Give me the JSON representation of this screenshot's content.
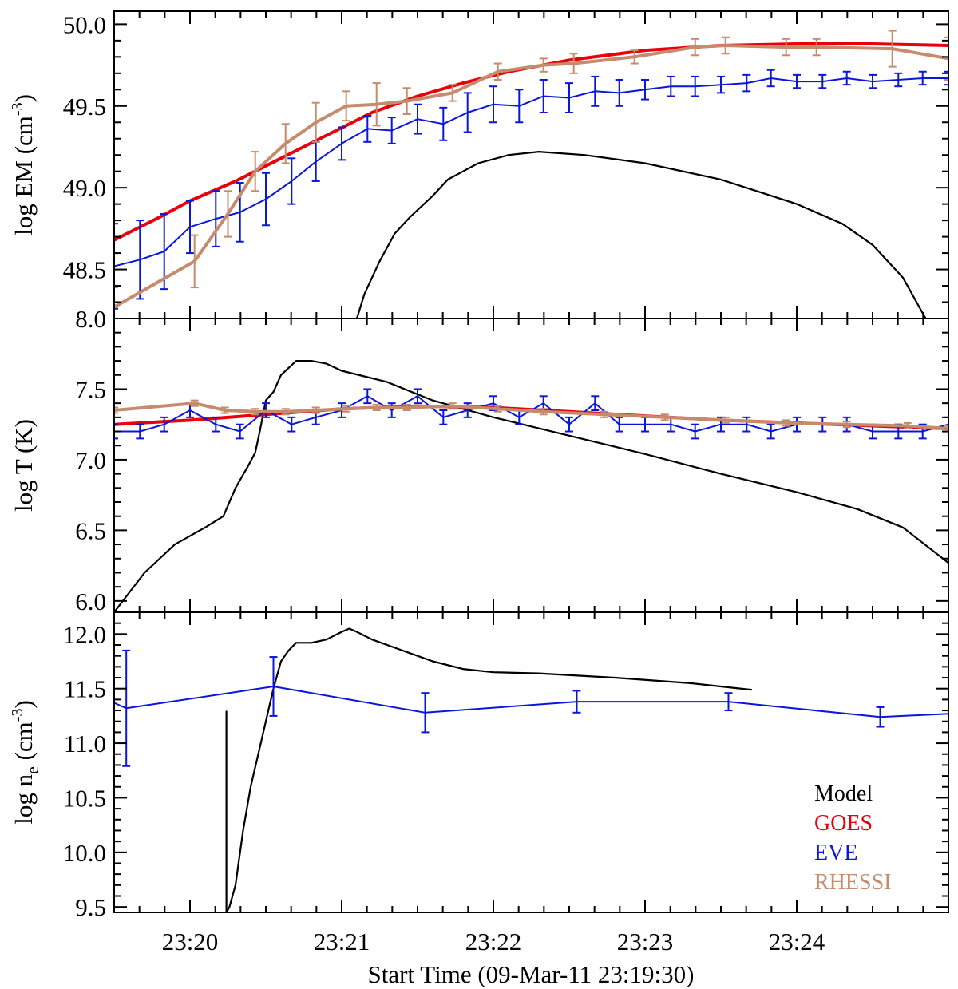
{
  "figure": {
    "xlabel": "Start Time (09-Mar-11 23:19:30)",
    "xticks": [
      "23:20",
      "23:21",
      "23:22",
      "23:23",
      "23:24"
    ],
    "colors": {
      "Model": "#000000",
      "GOES": "#e8000b",
      "EVE": "#0a17d8",
      "RHESSI": "#c68a6c"
    }
  },
  "legend": {
    "placement": "bottom-right of bottom panel",
    "items": [
      "Model",
      "GOES",
      "EVE",
      "RHESSI"
    ]
  },
  "chart_data": [
    {
      "type": "line",
      "panel": "emission-measure",
      "ylabel": "log EM (cm-3)",
      "ylabel_parts": [
        "log EM (cm",
        "-3",
        ")"
      ],
      "xlim": [
        -0.5,
        5.0
      ],
      "ylim": [
        48.2,
        50.08
      ],
      "yticks": [
        48.5,
        49.0,
        49.5,
        50.0
      ],
      "ytick_labels": [
        "48.5",
        "49.0",
        "49.5",
        "50.0"
      ],
      "x_unit": "minutes since 23:20:00",
      "series": [
        {
          "name": "Model",
          "style": "line",
          "x": [
            1.1,
            1.15,
            1.25,
            1.35,
            1.45,
            1.6,
            1.7,
            1.8,
            1.9,
            2.1,
            2.3,
            2.6,
            3.0,
            3.5,
            4.0,
            4.3,
            4.5,
            4.7,
            4.85
          ],
          "y": [
            48.2,
            48.35,
            48.55,
            48.72,
            48.82,
            48.95,
            49.05,
            49.1,
            49.15,
            49.2,
            49.22,
            49.2,
            49.15,
            49.05,
            48.9,
            48.78,
            48.65,
            48.45,
            48.2
          ]
        },
        {
          "name": "GOES",
          "style": "thick-line",
          "x": [
            -0.5,
            -0.2,
            0.0,
            0.3,
            0.6,
            0.9,
            1.2,
            1.5,
            1.8,
            2.1,
            2.5,
            3.0,
            3.5,
            4.0,
            4.5,
            5.0
          ],
          "y": [
            48.68,
            48.82,
            48.92,
            49.04,
            49.18,
            49.32,
            49.46,
            49.56,
            49.64,
            49.71,
            49.78,
            49.84,
            49.87,
            49.88,
            49.88,
            49.87
          ]
        },
        {
          "name": "EVE",
          "style": "line-errorbar",
          "x": [
            -0.5,
            -0.33,
            -0.17,
            0.0,
            0.17,
            0.33,
            0.5,
            0.67,
            0.83,
            1.0,
            1.17,
            1.33,
            1.5,
            1.67,
            1.83,
            2.0,
            2.17,
            2.33,
            2.5,
            2.67,
            2.83,
            3.0,
            3.17,
            3.33,
            3.5,
            3.67,
            3.83,
            4.0,
            4.17,
            4.33,
            4.5,
            4.67,
            4.83,
            5.0
          ],
          "y": [
            48.52,
            48.56,
            48.61,
            48.76,
            48.81,
            48.85,
            48.93,
            49.04,
            49.16,
            49.27,
            49.36,
            49.35,
            49.42,
            49.39,
            49.46,
            49.51,
            49.5,
            49.56,
            49.55,
            49.59,
            49.58,
            49.6,
            49.62,
            49.62,
            49.63,
            49.64,
            49.67,
            49.65,
            49.65,
            49.67,
            49.65,
            49.66,
            49.67,
            49.67
          ],
          "yerr": [
            0.26,
            0.24,
            0.23,
            0.16,
            0.17,
            0.18,
            0.16,
            0.14,
            0.12,
            0.1,
            0.08,
            0.08,
            0.09,
            0.1,
            0.12,
            0.11,
            0.1,
            0.1,
            0.09,
            0.09,
            0.08,
            0.06,
            0.06,
            0.06,
            0.05,
            0.05,
            0.05,
            0.04,
            0.04,
            0.04,
            0.04,
            0.04,
            0.04,
            0.04
          ]
        },
        {
          "name": "RHESSI",
          "style": "thick-line-errorbar",
          "x": [
            -0.5,
            0.03,
            0.25,
            0.43,
            0.63,
            0.83,
            1.03,
            1.23,
            1.43,
            1.73,
            2.03,
            2.33,
            2.53,
            2.93,
            3.33,
            3.53,
            3.93,
            4.13,
            4.63,
            5.0
          ],
          "y": [
            48.27,
            48.55,
            48.84,
            49.1,
            49.27,
            49.4,
            49.5,
            49.51,
            49.53,
            49.58,
            49.71,
            49.75,
            49.76,
            49.8,
            49.86,
            49.87,
            49.86,
            49.86,
            49.85,
            49.79
          ],
          "yerr": [
            0.12,
            0.16,
            0.14,
            0.12,
            0.12,
            0.12,
            0.09,
            0.13,
            0.08,
            0.05,
            0.05,
            0.04,
            0.06,
            0.04,
            0.05,
            0.05,
            0.05,
            0.05,
            0.11,
            0.13
          ]
        }
      ]
    },
    {
      "type": "line",
      "panel": "temperature",
      "ylabel": "log T (K)",
      "ylabel_parts": [
        "log T (K)"
      ],
      "xlim": [
        -0.5,
        5.0
      ],
      "ylim": [
        5.92,
        8.0
      ],
      "yticks": [
        6.0,
        6.5,
        7.0,
        7.5,
        8.0
      ],
      "ytick_labels": [
        "6.0",
        "6.5",
        "7.0",
        "7.5",
        "8.0"
      ],
      "x_unit": "minutes since 23:20:00",
      "series": [
        {
          "name": "Model",
          "style": "line",
          "x": [
            -0.5,
            -0.3,
            -0.1,
            0.1,
            0.22,
            0.3,
            0.38,
            0.43,
            0.46,
            0.5,
            0.55,
            0.6,
            0.7,
            0.8,
            0.9,
            1.0,
            1.3,
            1.6,
            2.0,
            2.5,
            3.0,
            3.5,
            4.0,
            4.4,
            4.7,
            5.0
          ],
          "y": [
            5.92,
            6.2,
            6.4,
            6.52,
            6.6,
            6.8,
            6.95,
            7.05,
            7.2,
            7.42,
            7.48,
            7.6,
            7.7,
            7.7,
            7.68,
            7.63,
            7.55,
            7.42,
            7.3,
            7.17,
            7.04,
            6.9,
            6.77,
            6.65,
            6.52,
            6.27
          ]
        },
        {
          "name": "GOES",
          "style": "thick-line",
          "x": [
            -0.5,
            0.0,
            0.5,
            1.0,
            1.5,
            2.0,
            2.5,
            3.0,
            3.5,
            4.0,
            4.5,
            5.0
          ],
          "y": [
            7.25,
            7.28,
            7.32,
            7.36,
            7.38,
            7.37,
            7.34,
            7.31,
            7.28,
            7.26,
            7.24,
            7.22
          ]
        },
        {
          "name": "EVE",
          "style": "line-errorbar",
          "x": [
            -0.5,
            -0.33,
            -0.17,
            0.0,
            0.17,
            0.33,
            0.5,
            0.67,
            0.83,
            1.0,
            1.17,
            1.33,
            1.5,
            1.67,
            1.83,
            2.0,
            2.17,
            2.33,
            2.5,
            2.67,
            2.83,
            3.0,
            3.17,
            3.33,
            3.5,
            3.67,
            3.83,
            4.0,
            4.17,
            4.33,
            4.5,
            4.67,
            4.83,
            5.0
          ],
          "y": [
            7.2,
            7.2,
            7.25,
            7.35,
            7.25,
            7.2,
            7.35,
            7.25,
            7.3,
            7.35,
            7.45,
            7.35,
            7.45,
            7.3,
            7.35,
            7.4,
            7.3,
            7.4,
            7.25,
            7.4,
            7.25,
            7.25,
            7.25,
            7.2,
            7.25,
            7.25,
            7.2,
            7.25,
            7.25,
            7.25,
            7.2,
            7.2,
            7.2,
            7.25
          ],
          "yerr": [
            0.05,
            0.05,
            0.05,
            0.05,
            0.05,
            0.05,
            0.05,
            0.05,
            0.05,
            0.05,
            0.05,
            0.05,
            0.05,
            0.05,
            0.05,
            0.05,
            0.05,
            0.05,
            0.05,
            0.05,
            0.05,
            0.05,
            0.05,
            0.05,
            0.05,
            0.05,
            0.05,
            0.05,
            0.05,
            0.05,
            0.05,
            0.05,
            0.05,
            0.05
          ]
        },
        {
          "name": "RHESSI",
          "style": "thick-line-errorbar",
          "x": [
            -0.5,
            0.03,
            0.23,
            0.43,
            0.63,
            0.83,
            1.03,
            1.23,
            1.43,
            1.73,
            2.03,
            2.33,
            2.73,
            3.13,
            3.53,
            3.93,
            4.33,
            4.73,
            5.0
          ],
          "y": [
            7.35,
            7.4,
            7.35,
            7.34,
            7.34,
            7.35,
            7.36,
            7.37,
            7.37,
            7.38,
            7.36,
            7.34,
            7.32,
            7.3,
            7.28,
            7.26,
            7.25,
            7.24,
            7.22
          ],
          "yerr": [
            0.02,
            0.02,
            0.02,
            0.02,
            0.02,
            0.02,
            0.02,
            0.02,
            0.02,
            0.02,
            0.02,
            0.02,
            0.02,
            0.02,
            0.02,
            0.02,
            0.02,
            0.02,
            0.02
          ]
        }
      ]
    },
    {
      "type": "line",
      "panel": "density",
      "ylabel": "log ne (cm-3)",
      "ylabel_parts": [
        "log n",
        "e",
        " (cm",
        "-3",
        ")"
      ],
      "xlim": [
        -0.5,
        5.0
      ],
      "ylim": [
        9.45,
        12.2
      ],
      "yticks": [
        9.5,
        10.0,
        10.5,
        11.0,
        11.5,
        12.0
      ],
      "ytick_labels": [
        "9.5",
        "10.0",
        "10.5",
        "11.0",
        "11.5",
        "12.0"
      ],
      "x_unit": "minutes since 23:20:00",
      "series": [
        {
          "name": "Model",
          "style": "line",
          "x": [
            0.24,
            0.24,
            0.26,
            0.3,
            0.35,
            0.4,
            0.45,
            0.5,
            0.55,
            0.6,
            0.65,
            0.7,
            0.8,
            0.9,
            1.0,
            1.05,
            1.1,
            1.2,
            1.4,
            1.6,
            1.8,
            2.0,
            2.3,
            2.8,
            3.3,
            3.7
          ],
          "y": [
            11.29,
            9.45,
            9.5,
            9.7,
            10.2,
            10.6,
            10.9,
            11.2,
            11.5,
            11.75,
            11.85,
            11.92,
            11.92,
            11.95,
            12.02,
            12.05,
            12.02,
            11.95,
            11.85,
            11.75,
            11.68,
            11.65,
            11.64,
            11.6,
            11.55,
            11.49
          ]
        },
        {
          "name": "EVE",
          "style": "line-errorbar",
          "x": [
            -0.5,
            -0.42,
            0.55,
            1.55,
            2.55,
            3.55,
            4.55,
            5.0
          ],
          "y": [
            11.37,
            11.32,
            11.52,
            11.28,
            11.38,
            11.38,
            11.24,
            11.27
          ],
          "yerr": [
            0.0,
            0.53,
            0.27,
            0.18,
            0.1,
            0.08,
            0.09,
            0.0
          ]
        }
      ]
    }
  ]
}
